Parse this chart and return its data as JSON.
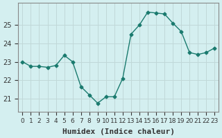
{
  "x": [
    0,
    1,
    2,
    3,
    4,
    5,
    6,
    7,
    8,
    9,
    10,
    11,
    12,
    13,
    14,
    15,
    16,
    17,
    18,
    19,
    20,
    21,
    22,
    23
  ],
  "y": [
    23.0,
    22.75,
    22.75,
    22.7,
    22.8,
    23.35,
    23.0,
    21.65,
    21.2,
    20.75,
    21.1,
    21.1,
    22.1,
    24.5,
    25.0,
    25.7,
    25.65,
    25.6,
    25.1,
    24.65,
    23.5,
    23.4,
    23.5,
    23.75
  ],
  "line_color": "#1a7a6e",
  "marker": "D",
  "marker_size": 2.5,
  "xlabel": "Humidex (Indice chaleur)",
  "bg_color": "#d4eff0",
  "grid_color": "#c0d8d8",
  "axis_color": "#888888",
  "ylim": [
    20.3,
    26.2
  ],
  "yticks": [
    21,
    22,
    23,
    24,
    25
  ],
  "xtick_labels": [
    "0",
    "1",
    "2",
    "3",
    "4",
    "5",
    "6",
    "7",
    "8",
    "9",
    "10",
    "11",
    "12",
    "13",
    "14",
    "15",
    "16",
    "17",
    "18",
    "19",
    "20",
    "21",
    "22",
    "23"
  ],
  "xlabel_fontsize": 8,
  "tick_fontsize": 7
}
